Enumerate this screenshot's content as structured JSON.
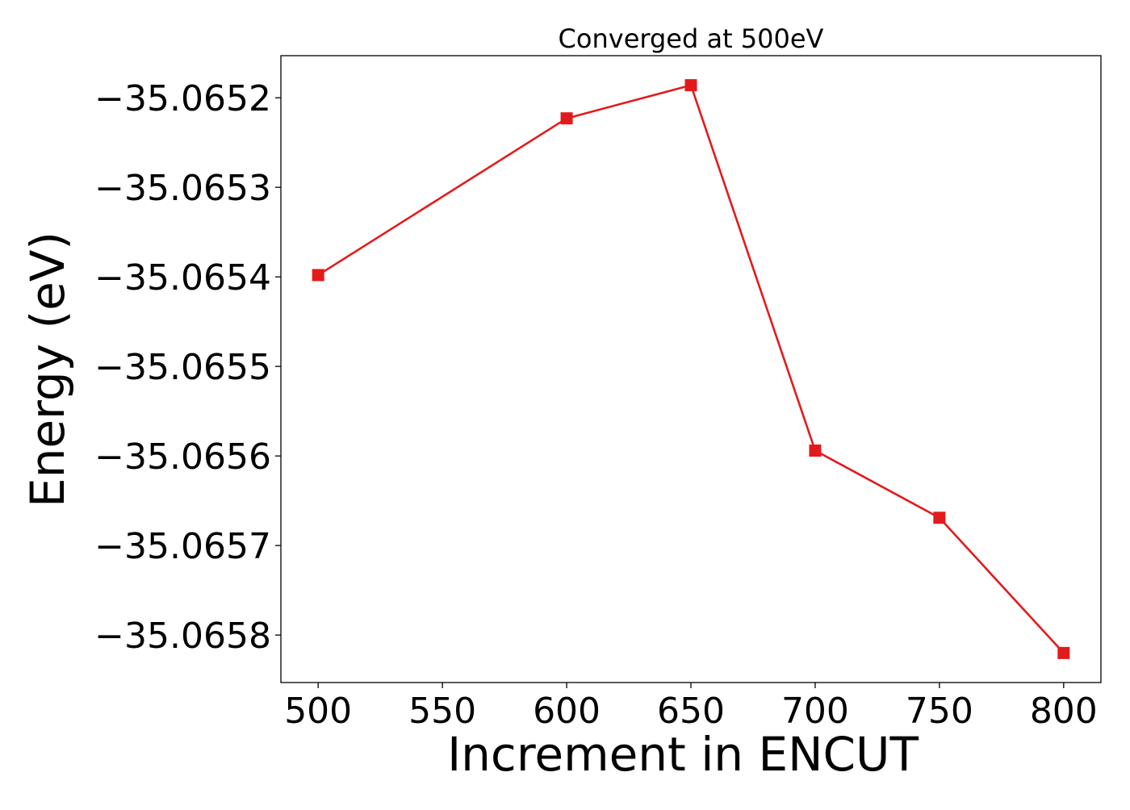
{
  "chart_data": {
    "type": "line",
    "title": "Converged at 500eV",
    "xlabel": "Increment in ENCUT",
    "ylabel": "Energy (eV)",
    "x": [
      500,
      600,
      650,
      700,
      750,
      800
    ],
    "series": [
      {
        "values": [
          -35.065398,
          -35.065223,
          -35.065186,
          -35.065594,
          -35.065669,
          -35.06582
        ],
        "color": "#e31a1c",
        "marker": "square"
      }
    ],
    "xlim": [
      485,
      815
    ],
    "ylim": [
      -35.065853,
      -35.065153
    ],
    "xticks": [
      500,
      550,
      600,
      650,
      700,
      750,
      800
    ],
    "xtick_labels": [
      "500",
      "550",
      "600",
      "650",
      "700",
      "750",
      "800"
    ],
    "yticks": [
      -35.0652,
      -35.0653,
      -35.0654,
      -35.0655,
      -35.0656,
      -35.0657,
      -35.0658
    ],
    "ytick_labels": [
      "−35.0652",
      "−35.0653",
      "−35.0654",
      "−35.0655",
      "−35.0656",
      "−35.0657",
      "−35.0658"
    ],
    "grid": false,
    "legend": "none"
  }
}
